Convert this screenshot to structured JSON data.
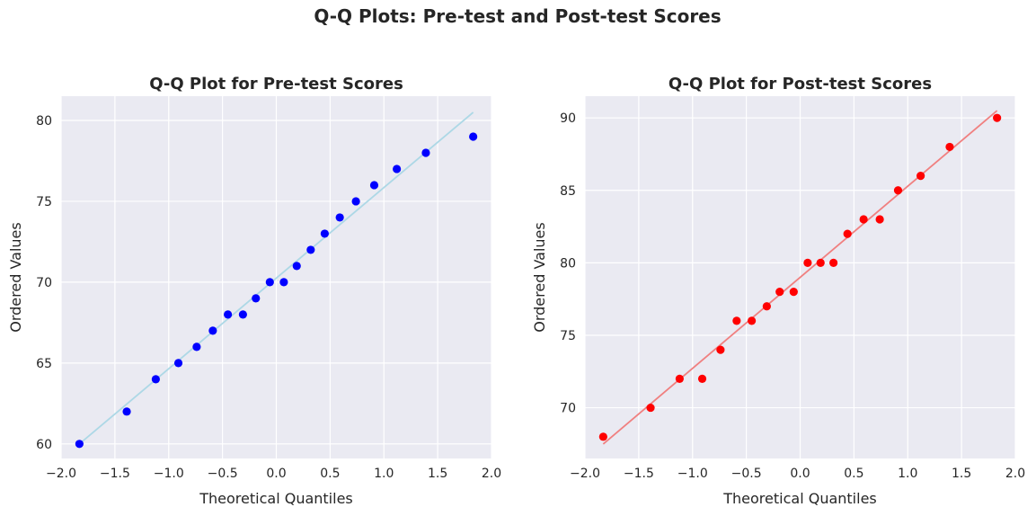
{
  "figure": {
    "suptitle": "Q-Q Plots: Pre-test and Post-test Scores"
  },
  "chart_data": [
    {
      "type": "scatter",
      "title": "Q-Q Plot for Pre-test Scores",
      "xlabel": "Theoretical Quantiles",
      "ylabel": "Ordered Values",
      "xlim": [
        -2.0,
        2.0
      ],
      "ylim": [
        59.1,
        81.5
      ],
      "xticks": [
        -2.0,
        -1.5,
        -1.0,
        -0.5,
        0.0,
        0.5,
        1.0,
        1.5,
        2.0
      ],
      "xtick_labels": [
        "−2.0",
        "−1.5",
        "−1.0",
        "−0.5",
        "0.0",
        "0.5",
        "1.0",
        "1.5",
        "2.0"
      ],
      "yticks": [
        60,
        65,
        70,
        75,
        80
      ],
      "ytick_labels": [
        "60",
        "65",
        "70",
        "75",
        "80"
      ],
      "grid": true,
      "point_color": "#0000ff",
      "line_color": "#add8e6",
      "x": [
        -1.83,
        -1.39,
        -1.12,
        -0.91,
        -0.74,
        -0.59,
        -0.45,
        -0.31,
        -0.19,
        -0.06,
        0.07,
        0.19,
        0.32,
        0.45,
        0.59,
        0.74,
        0.91,
        1.12,
        1.39,
        1.83
      ],
      "y": [
        60,
        62,
        64,
        65,
        66,
        67,
        68,
        68,
        69,
        70,
        70,
        71,
        72,
        73,
        74,
        75,
        76,
        77,
        78,
        79
      ],
      "fit_line": {
        "x": [
          -1.83,
          1.83
        ],
        "y": [
          60.0,
          80.5
        ]
      }
    },
    {
      "type": "scatter",
      "title": "Q-Q Plot for Post-test Scores",
      "xlabel": "Theoretical Quantiles",
      "ylabel": "Ordered Values",
      "xlim": [
        -2.0,
        2.0
      ],
      "ylim": [
        66.5,
        91.5
      ],
      "xticks": [
        -2.0,
        -1.5,
        -1.0,
        -0.5,
        0.0,
        0.5,
        1.0,
        1.5,
        2.0
      ],
      "xtick_labels": [
        "−2.0",
        "−1.5",
        "−1.0",
        "−0.5",
        "0.0",
        "0.5",
        "1.0",
        "1.5",
        "2.0"
      ],
      "yticks": [
        70,
        75,
        80,
        85,
        90
      ],
      "ytick_labels": [
        "70",
        "75",
        "80",
        "85",
        "90"
      ],
      "grid": true,
      "point_color": "#ff0000",
      "line_color": "#f08080",
      "x": [
        -1.83,
        -1.39,
        -1.12,
        -0.91,
        -0.74,
        -0.59,
        -0.45,
        -0.31,
        -0.19,
        -0.06,
        0.07,
        0.19,
        0.31,
        0.44,
        0.59,
        0.74,
        0.91,
        1.12,
        1.39,
        1.83
      ],
      "y": [
        68,
        70,
        72,
        72,
        74,
        76,
        76,
        77,
        78,
        78,
        80,
        80,
        80,
        82,
        83,
        83,
        85,
        86,
        88,
        90
      ],
      "fit_line": {
        "x": [
          -1.83,
          1.83
        ],
        "y": [
          67.5,
          90.5
        ]
      }
    }
  ]
}
